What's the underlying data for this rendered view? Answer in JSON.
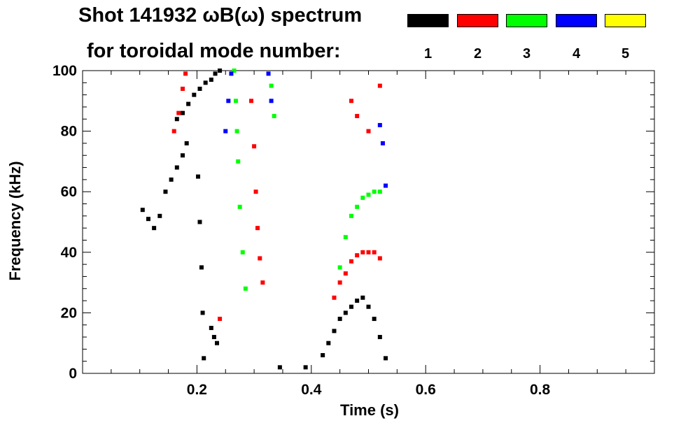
{
  "chart_data": {
    "type": "heatmap",
    "title_line1": "Shot 141932 ωB(ω) spectrum",
    "title_line2": "for toroidal mode number:",
    "xlabel": "Time (s)",
    "ylabel": "Frequency (kHz)",
    "xlim": [
      0.0,
      1.0
    ],
    "ylim": [
      0,
      100
    ],
    "xticks": [
      0.2,
      0.4,
      0.6,
      0.8
    ],
    "xtick_labels": [
      "0.2",
      "0.4",
      "0.6",
      "0.8"
    ],
    "yticks": [
      0,
      20,
      40,
      60,
      80,
      100
    ],
    "ytick_labels": [
      "0",
      "20",
      "40",
      "60",
      "80",
      "100"
    ],
    "grid": false,
    "legend": {
      "placement": "top-right",
      "entries": [
        {
          "label": "1",
          "color": "#000000"
        },
        {
          "label": "2",
          "color": "#ff0000"
        },
        {
          "label": "3",
          "color": "#00ff00"
        },
        {
          "label": "4",
          "color": "#0000ff"
        },
        {
          "label": "5",
          "color": "#ffff00"
        }
      ]
    },
    "series": [
      {
        "mode": "1",
        "color": "#000000",
        "points": [
          [
            0.105,
            54
          ],
          [
            0.115,
            51
          ],
          [
            0.125,
            48
          ],
          [
            0.135,
            52
          ],
          [
            0.145,
            60
          ],
          [
            0.155,
            64
          ],
          [
            0.165,
            68
          ],
          [
            0.175,
            72
          ],
          [
            0.182,
            76
          ],
          [
            0.165,
            84
          ],
          [
            0.175,
            86
          ],
          [
            0.185,
            89
          ],
          [
            0.195,
            92
          ],
          [
            0.205,
            94
          ],
          [
            0.215,
            96
          ],
          [
            0.225,
            97
          ],
          [
            0.232,
            99
          ],
          [
            0.24,
            100
          ],
          [
            0.202,
            65
          ],
          [
            0.205,
            50
          ],
          [
            0.208,
            35
          ],
          [
            0.21,
            20
          ],
          [
            0.212,
            5
          ],
          [
            0.225,
            15
          ],
          [
            0.23,
            12
          ],
          [
            0.235,
            10
          ],
          [
            0.345,
            2
          ],
          [
            0.39,
            2
          ],
          [
            0.42,
            6
          ],
          [
            0.43,
            10
          ],
          [
            0.44,
            14
          ],
          [
            0.45,
            18
          ],
          [
            0.46,
            20
          ],
          [
            0.47,
            22
          ],
          [
            0.48,
            24
          ],
          [
            0.49,
            25
          ],
          [
            0.5,
            22
          ],
          [
            0.51,
            18
          ],
          [
            0.52,
            12
          ],
          [
            0.53,
            5
          ]
        ]
      },
      {
        "mode": "2",
        "color": "#ff0000",
        "points": [
          [
            0.16,
            80
          ],
          [
            0.168,
            86
          ],
          [
            0.175,
            94
          ],
          [
            0.18,
            99
          ],
          [
            0.295,
            90
          ],
          [
            0.3,
            75
          ],
          [
            0.303,
            60
          ],
          [
            0.306,
            48
          ],
          [
            0.31,
            38
          ],
          [
            0.315,
            30
          ],
          [
            0.24,
            18
          ],
          [
            0.44,
            25
          ],
          [
            0.45,
            30
          ],
          [
            0.46,
            33
          ],
          [
            0.47,
            37
          ],
          [
            0.48,
            39
          ],
          [
            0.49,
            40
          ],
          [
            0.5,
            40
          ],
          [
            0.51,
            40
          ],
          [
            0.52,
            38
          ],
          [
            0.47,
            90
          ],
          [
            0.48,
            85
          ],
          [
            0.5,
            80
          ],
          [
            0.52,
            95
          ]
        ]
      },
      {
        "mode": "3",
        "color": "#00ff00",
        "points": [
          [
            0.265,
            100
          ],
          [
            0.268,
            90
          ],
          [
            0.27,
            80
          ],
          [
            0.272,
            70
          ],
          [
            0.275,
            55
          ],
          [
            0.28,
            40
          ],
          [
            0.285,
            28
          ],
          [
            0.45,
            35
          ],
          [
            0.46,
            45
          ],
          [
            0.47,
            52
          ],
          [
            0.48,
            55
          ],
          [
            0.49,
            58
          ],
          [
            0.5,
            59
          ],
          [
            0.51,
            60
          ],
          [
            0.52,
            60
          ],
          [
            0.33,
            95
          ],
          [
            0.335,
            85
          ]
        ]
      },
      {
        "mode": "4",
        "color": "#0000ff",
        "points": [
          [
            0.25,
            80
          ],
          [
            0.255,
            90
          ],
          [
            0.26,
            99
          ],
          [
            0.325,
            99
          ],
          [
            0.33,
            90
          ],
          [
            0.52,
            82
          ],
          [
            0.525,
            76
          ],
          [
            0.53,
            62
          ]
        ]
      },
      {
        "mode": "5",
        "color": "#ffff00",
        "points": []
      }
    ]
  }
}
